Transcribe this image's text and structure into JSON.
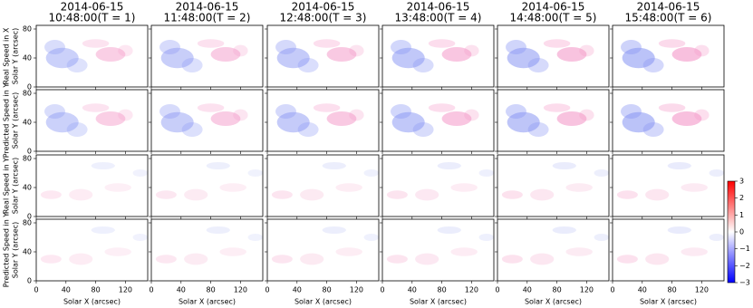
{
  "chart_data": {
    "type": "heatmap-grid",
    "column_titles": [
      {
        "date": "2014-06-15",
        "time": "10:48:00(T = 1)"
      },
      {
        "date": "2014-06-15",
        "time": "11:48:00(T = 2)"
      },
      {
        "date": "2014-06-15",
        "time": "12:48:00(T = 3)"
      },
      {
        "date": "2014-06-15",
        "time": "13:48:00(T = 4)"
      },
      {
        "date": "2014-06-15",
        "time": "14:48:00(T = 5)"
      },
      {
        "date": "2014-06-15",
        "time": "15:48:00(T = 6)"
      }
    ],
    "row_labels": [
      "Real Speed in X",
      "Predicted Speed in Y",
      "Real Speed in Y",
      "Predicted Speed in Y"
    ],
    "xlabel": "Solar X (arcsec)",
    "ylabel": "Solar Y (arcsec)",
    "xlim": [
      0,
      150
    ],
    "xticks": [
      0,
      40,
      80,
      120
    ],
    "ylim": [
      0,
      85
    ],
    "yticks": [
      0,
      40,
      80
    ],
    "colorbar": {
      "colors": [
        "#0000ff",
        "#ffffff",
        "#ff0000"
      ],
      "lim": [
        -3,
        3
      ],
      "ticks": [
        {
          "value": -3,
          "label": "−3"
        },
        {
          "value": -2,
          "label": "−2"
        },
        {
          "value": -1,
          "label": "−1"
        },
        0,
        1,
        2,
        3
      ]
    }
  }
}
